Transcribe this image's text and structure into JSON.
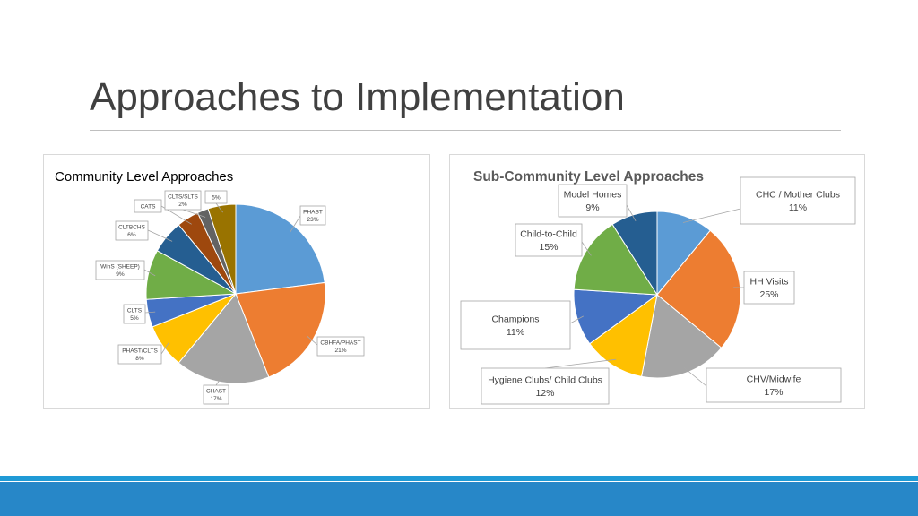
{
  "slide": {
    "title": "Approaches to Implementation"
  },
  "chart_data": [
    {
      "type": "pie",
      "title": "Community Level Approaches",
      "categories": [
        "PHAST",
        "CBHFA/PHAST",
        "CHAST",
        "PHAST/CLTS",
        "CLTS",
        "WinS (SHEEP)",
        "CLTBCHS",
        "CATS",
        "CLTS/SLTS",
        ""
      ],
      "values": [
        23,
        21,
        17,
        8,
        5,
        9,
        6,
        4,
        2,
        5
      ],
      "labels": [
        "23%",
        "21%",
        "17%",
        "8%",
        "5%",
        "9%",
        "6%",
        "",
        "2%",
        "5%"
      ],
      "colors": [
        "#5b9bd5",
        "#ed7d31",
        "#a5a5a5",
        "#ffc000",
        "#4472c4",
        "#70ad47",
        "#255e91",
        "#9e480e",
        "#636363",
        "#997300"
      ]
    },
    {
      "type": "pie",
      "title": "Sub-Community Level Approaches",
      "categories": [
        "CHC / Mother Clubs",
        "HH Visits",
        "CHV/Midwife",
        "Hygiene Clubs/ Child Clubs",
        "Champions",
        "Child-to-Child",
        "Model Homes"
      ],
      "values": [
        11,
        25,
        17,
        12,
        11,
        15,
        9
      ],
      "labels": [
        "11%",
        "25%",
        "17%",
        "12%",
        "11%",
        "15%",
        "9%"
      ],
      "colors": [
        "#5b9bd5",
        "#ed7d31",
        "#a5a5a5",
        "#ffc000",
        "#4472c4",
        "#70ad47",
        "#255e91"
      ]
    }
  ]
}
